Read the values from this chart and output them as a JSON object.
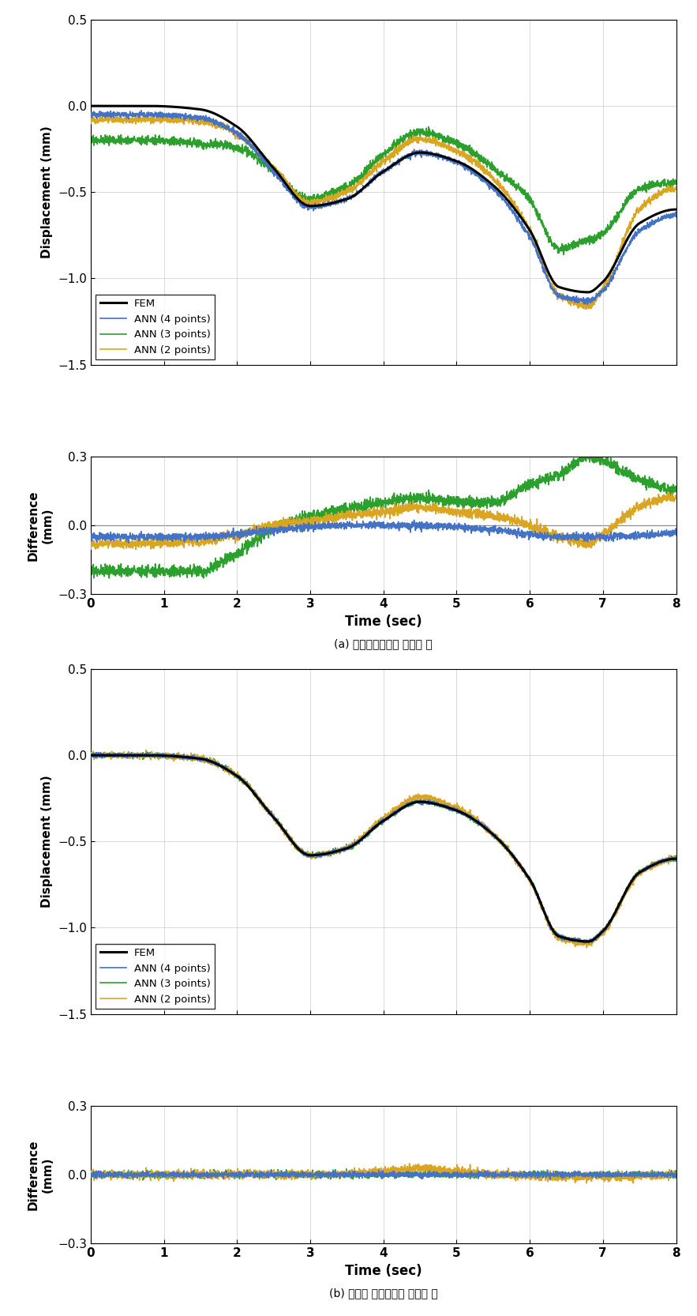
{
  "title_a": "(a) 임의위치에서의 변형률 값",
  "title_b": "(b) 최적화 위치에서의 변형률 값",
  "xlabel": "Time (sec)",
  "ylabel_disp": "Displacement (mm)",
  "ylabel_diff": "Difference\n(mm)",
  "xlim": [
    0,
    8
  ],
  "ylim_disp": [
    -1.5,
    0.5
  ],
  "ylim_diff": [
    -0.3,
    0.3
  ],
  "xticks": [
    0,
    1,
    2,
    3,
    4,
    5,
    6,
    7,
    8
  ],
  "colors": {
    "FEM": "#000000",
    "ANN4": "#4472C4",
    "ANN3": "#2CA02C",
    "ANN2": "#DAA520"
  },
  "lw_fem": 2.2,
  "lw_ann": 1.2
}
